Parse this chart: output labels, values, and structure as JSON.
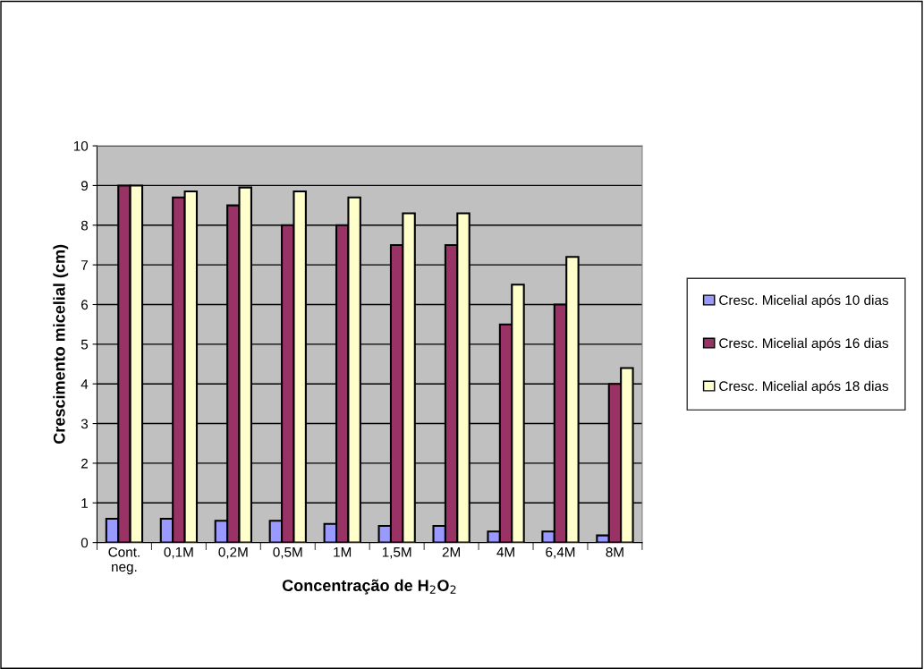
{
  "chart_data": {
    "type": "bar",
    "xlabel": "Concentração de H$_{2}$O$_{2}$",
    "ylabel": "Crescimento micelial (cm)",
    "categories": [
      "Cont.\nneg.",
      "0,1M",
      "0,2M",
      "0,5M",
      "1M",
      "1,5M",
      "2M",
      "4M",
      "6,4M",
      "8M"
    ],
    "series": [
      {
        "name": "Cresc. Micelial após 10 dias",
        "color": "#9999ff",
        "values": [
          0.6,
          0.6,
          0.55,
          0.55,
          0.47,
          0.42,
          0.42,
          0.28,
          0.28,
          0.18
        ]
      },
      {
        "name": "Cresc. Micelial após 16 dias",
        "color": "#993366",
        "values": [
          9,
          8.7,
          8.5,
          8,
          8,
          7.5,
          7.5,
          5.5,
          6,
          4
        ]
      },
      {
        "name": "Cresc. Micelial após 18 dias",
        "color": "#ffffcc",
        "values": [
          9,
          8.85,
          8.95,
          8.85,
          8.7,
          8.3,
          8.3,
          6.5,
          7.2,
          4.4
        ]
      }
    ],
    "ylim": [
      0,
      10
    ],
    "yticks": [
      0,
      1,
      2,
      3,
      4,
      5,
      6,
      7,
      8,
      9,
      10
    ],
    "grid": "y",
    "legend": "right"
  }
}
